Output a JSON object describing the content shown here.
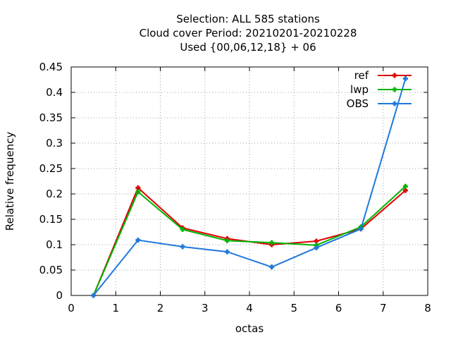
{
  "chart_data": {
    "type": "line",
    "title": [
      "Selection: ALL    585 stations",
      "Cloud cover  Period: 20210201-20210228",
      "Used {00,06,12,18} + 06"
    ],
    "xlabel": "octas",
    "ylabel": "Relative frequency",
    "xlim": [
      0,
      8
    ],
    "ylim": [
      0,
      0.45
    ],
    "xticks": [
      0,
      1,
      2,
      3,
      4,
      5,
      6,
      7,
      8
    ],
    "yticks": [
      0,
      0.05,
      0.1,
      0.15,
      0.2,
      0.25,
      0.3,
      0.35,
      0.4,
      0.45
    ],
    "ytick_labels": [
      "0",
      "0.05",
      "0.1",
      "0.15",
      "0.2",
      "0.25",
      "0.3",
      "0.35",
      "0.4",
      "0.45"
    ],
    "grid": true,
    "legend_position": "top-right",
    "x": [
      0.5,
      1.5,
      2.5,
      3.5,
      4.5,
      5.5,
      6.5,
      7.5
    ],
    "series": [
      {
        "name": "ref",
        "color": "#e00000",
        "values": [
          0.0,
          0.212,
          0.133,
          0.112,
          0.1,
          0.107,
          0.131,
          0.207
        ]
      },
      {
        "name": "lwp",
        "color": "#00b400",
        "values": [
          0.0,
          0.204,
          0.13,
          0.108,
          0.104,
          0.099,
          0.135,
          0.215
        ]
      },
      {
        "name": "OBS",
        "color": "#1e78dc",
        "values": [
          0.0,
          0.109,
          0.096,
          0.086,
          0.056,
          0.094,
          0.131,
          0.427
        ]
      }
    ]
  }
}
